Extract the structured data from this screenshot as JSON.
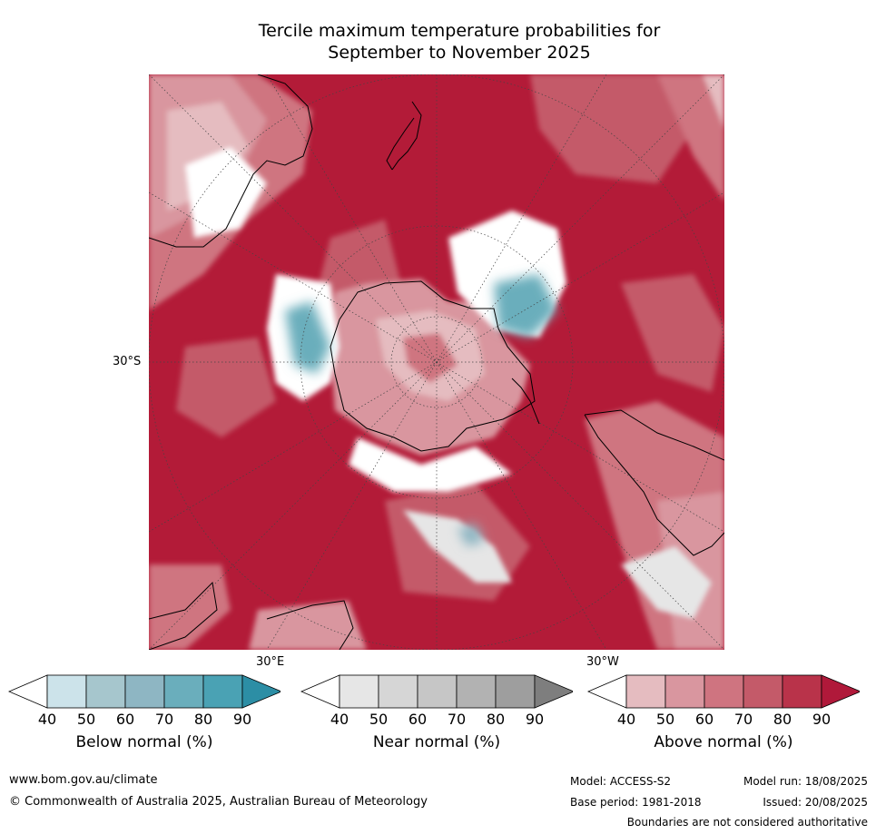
{
  "title": {
    "line1": "Tercile maximum temperature probabilities for",
    "line2": "September to November 2025"
  },
  "map": {
    "projection": "south polar stereographic",
    "lat_labels": [
      "30°S"
    ],
    "lon_labels": [
      "30°E",
      "30°W"
    ],
    "colors": {
      "ocean_above": "#b31b38",
      "land_outline": "#000000"
    }
  },
  "colorbars": [
    {
      "label": "Below normal (%)",
      "ticks": [
        "40",
        "50",
        "60",
        "70",
        "80",
        "90"
      ],
      "colors": [
        "#ffffff",
        "#cce3ea",
        "#a6c6cd",
        "#8eb6c3",
        "#6aaebc",
        "#4aa2b4",
        "#2c8ea5"
      ]
    },
    {
      "label": "Near normal (%)",
      "ticks": [
        "40",
        "50",
        "60",
        "70",
        "80",
        "90"
      ],
      "colors": [
        "#ffffff",
        "#e6e6e6",
        "#d6d6d6",
        "#c6c6c6",
        "#b2b2b2",
        "#9e9e9e",
        "#7e7e7e"
      ]
    },
    {
      "label": "Above normal (%)",
      "ticks": [
        "40",
        "50",
        "60",
        "70",
        "80",
        "90"
      ],
      "colors": [
        "#ffffff",
        "#e5bcc0",
        "#d9969f",
        "#cf7480",
        "#c45a69",
        "#b9334a",
        "#b0193a"
      ]
    }
  ],
  "footer": {
    "website": "www.bom.gov.au/climate",
    "copyright": "© Commonwealth of Australia 2025, Australian Bureau of Meteorology",
    "model": "Model: ACCESS-S2",
    "base_period": "Base period: 1981-2018",
    "model_run": "Model run: 18/08/2025",
    "issued": "Issued: 20/08/2025",
    "disclaimer": "Boundaries are not considered authoritative"
  }
}
